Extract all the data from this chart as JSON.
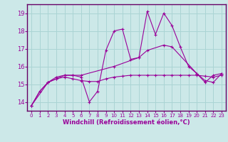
{
  "xlabel": "Windchill (Refroidissement éolien,°C)",
  "bg_color": "#cce8e8",
  "grid_color": "#aad4d4",
  "line_color": "#990099",
  "spine_color": "#660066",
  "xlim": [
    -0.5,
    23.5
  ],
  "ylim": [
    13.5,
    19.5
  ],
  "yticks": [
    14,
    15,
    16,
    17,
    18,
    19
  ],
  "xticks": [
    0,
    1,
    2,
    3,
    4,
    5,
    6,
    7,
    8,
    9,
    10,
    11,
    12,
    13,
    14,
    15,
    16,
    17,
    18,
    19,
    20,
    21,
    22,
    23
  ],
  "series": {
    "line1_x": [
      0,
      1,
      2,
      3,
      4,
      5,
      6,
      7,
      8,
      9,
      10,
      11,
      12,
      13,
      14,
      15,
      16,
      17,
      18,
      19,
      20,
      21,
      22,
      23
    ],
    "line1_y": [
      13.8,
      14.6,
      15.1,
      15.4,
      15.5,
      15.5,
      15.4,
      14.0,
      14.6,
      16.9,
      18.0,
      18.1,
      16.4,
      16.5,
      19.1,
      17.8,
      19.0,
      18.3,
      17.1,
      16.0,
      15.6,
      15.2,
      15.1,
      15.6
    ],
    "line2_x": [
      0,
      1,
      2,
      3,
      4,
      5,
      6,
      7,
      8,
      9,
      10,
      11,
      12,
      13,
      14,
      15,
      16,
      17,
      18,
      19,
      20,
      21,
      22,
      23
    ],
    "line2_y": [
      13.8,
      14.6,
      15.1,
      15.3,
      15.4,
      15.3,
      15.2,
      15.15,
      15.15,
      15.3,
      15.4,
      15.45,
      15.5,
      15.5,
      15.5,
      15.5,
      15.5,
      15.5,
      15.5,
      15.5,
      15.5,
      15.45,
      15.4,
      15.5
    ],
    "line3_x": [
      0,
      2,
      3,
      4,
      5,
      6,
      10,
      13,
      14,
      16,
      17,
      20,
      21,
      22,
      23
    ],
    "line3_y": [
      13.8,
      15.1,
      15.3,
      15.5,
      15.5,
      15.5,
      16.0,
      16.5,
      16.9,
      17.2,
      17.1,
      15.6,
      15.1,
      15.5,
      15.6
    ]
  }
}
